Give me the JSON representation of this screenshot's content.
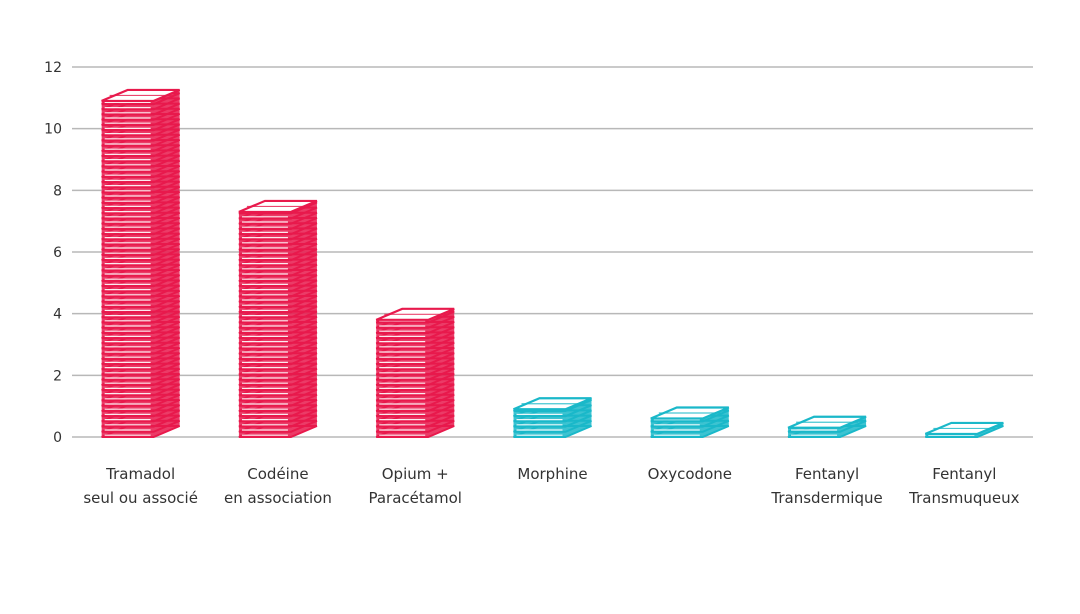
{
  "chart_data": {
    "type": "bar",
    "title": "",
    "xlabel": "",
    "ylabel": "",
    "ylim": [
      0,
      12
    ],
    "yticks": [
      0,
      2,
      4,
      6,
      8,
      10,
      12
    ],
    "grid": true,
    "categories": [
      {
        "line1": "Tramadol",
        "line2": "seul ou associé",
        "value": 10.9,
        "color": "#e8194c"
      },
      {
        "line1": "Codéine",
        "line2": "en association",
        "value": 7.3,
        "color": "#e8194c"
      },
      {
        "line1": "Opium +",
        "line2": "Paracétamol",
        "value": 3.8,
        "color": "#e8194c"
      },
      {
        "line1": "Morphine",
        "line2": "",
        "value": 0.9,
        "color": "#1ab8c9"
      },
      {
        "line1": "Oxycodone",
        "line2": "",
        "value": 0.6,
        "color": "#1ab8c9"
      },
      {
        "line1": "Fentanyl",
        "line2": "Transdermique",
        "value": 0.3,
        "color": "#1ab8c9"
      },
      {
        "line1": "Fentanyl",
        "line2": "Transmuqueux",
        "value": 0.1,
        "color": "#1ab8c9"
      }
    ]
  }
}
